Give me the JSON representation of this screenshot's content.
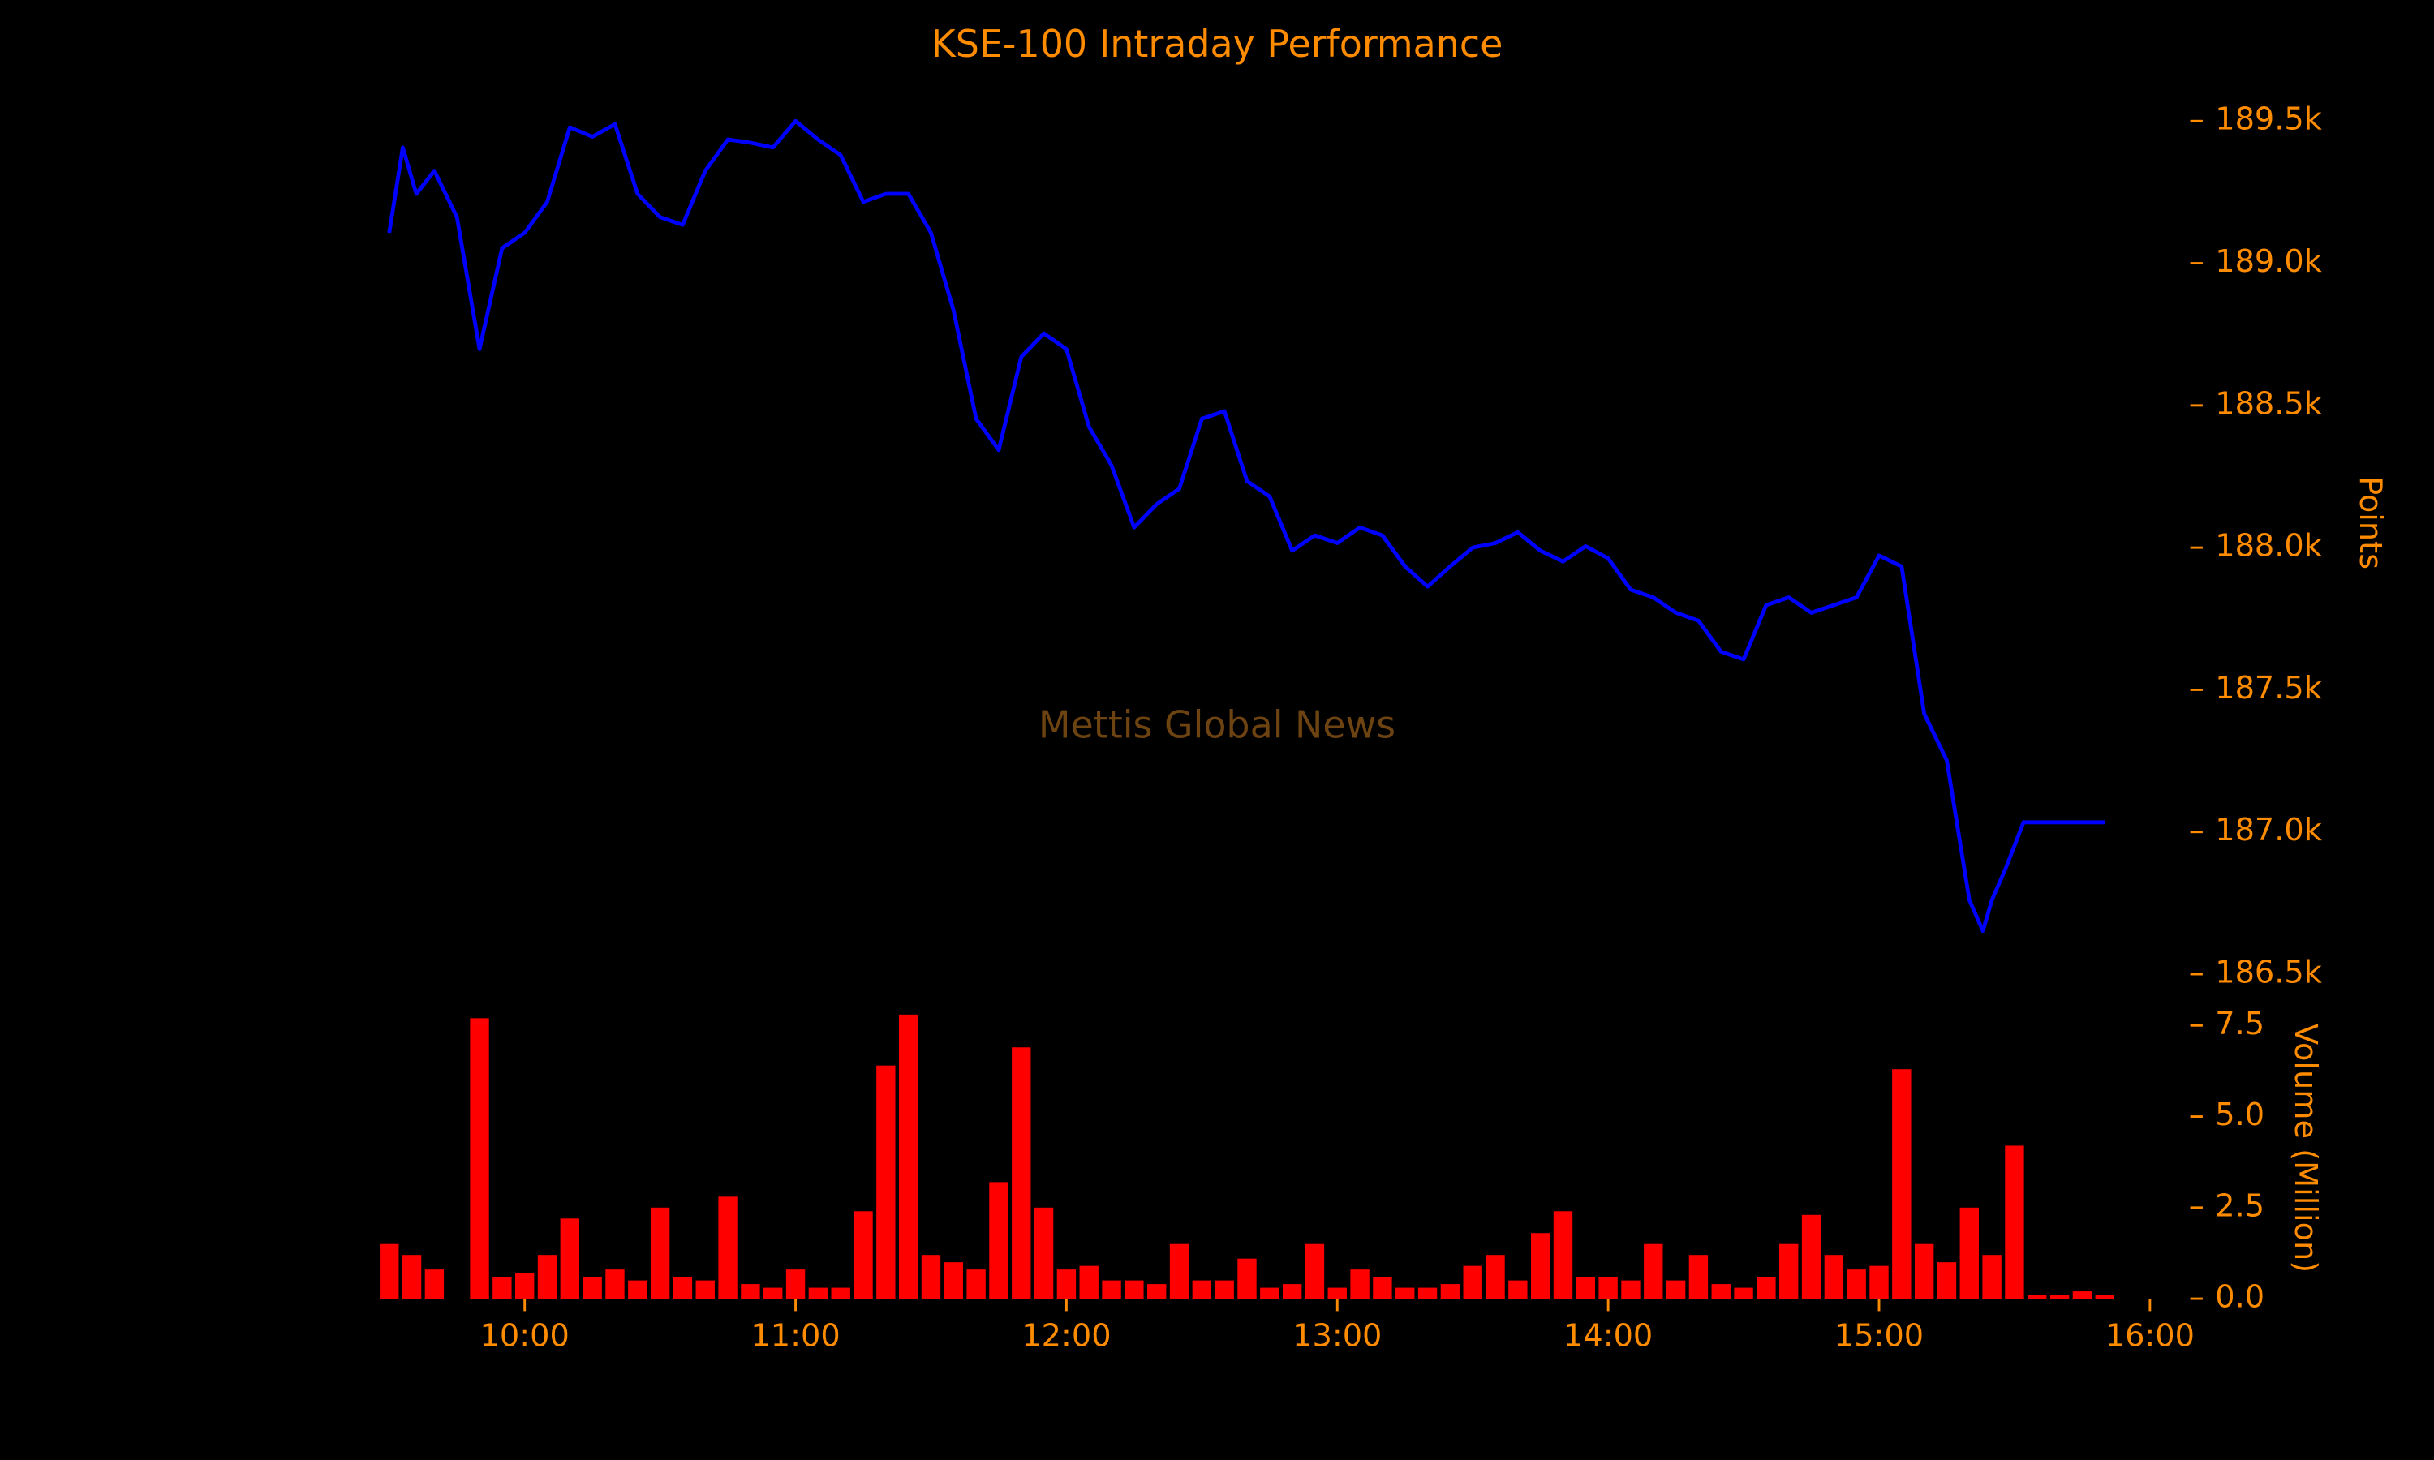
{
  "chart_data": [
    {
      "type": "line",
      "title": "KSE-100 Intraday Performance",
      "annotation": "Mettis Global News",
      "ylabel": "Points",
      "xlim": [
        "09:26",
        "16:00"
      ],
      "xticks": [
        "10:00",
        "11:00",
        "12:00",
        "13:00",
        "14:00",
        "15:00",
        "16:00"
      ],
      "ylim": [
        186400,
        189600
      ],
      "yticks": [
        {
          "value": 186500,
          "label": "186.5k"
        },
        {
          "value": 187000,
          "label": "187.0k"
        },
        {
          "value": 187500,
          "label": "187.5k"
        },
        {
          "value": 188000,
          "label": "188.0k"
        },
        {
          "value": 188500,
          "label": "188.5k"
        },
        {
          "value": 189000,
          "label": "189.0k"
        },
        {
          "value": 189500,
          "label": "189.5k"
        }
      ],
      "series": [
        {
          "color": "#0000ff",
          "x": [
            "09:30",
            "09:33",
            "09:36",
            "09:40",
            "09:45",
            "09:50",
            "09:55",
            "10:00",
            "10:05",
            "10:10",
            "10:15",
            "10:20",
            "10:25",
            "10:30",
            "10:35",
            "10:40",
            "10:45",
            "10:50",
            "10:55",
            "11:00",
            "11:05",
            "11:10",
            "11:15",
            "11:20",
            "11:25",
            "11:30",
            "11:35",
            "11:40",
            "11:45",
            "11:50",
            "11:55",
            "12:00",
            "12:05",
            "12:10",
            "12:15",
            "12:20",
            "12:25",
            "12:30",
            "12:35",
            "12:40",
            "12:45",
            "12:50",
            "12:55",
            "13:00",
            "13:05",
            "13:10",
            "13:15",
            "13:20",
            "13:25",
            "13:30",
            "13:35",
            "13:40",
            "13:45",
            "13:50",
            "13:55",
            "14:00",
            "14:05",
            "14:10",
            "14:15",
            "14:20",
            "14:25",
            "14:30",
            "14:35",
            "14:40",
            "14:45",
            "14:50",
            "14:55",
            "15:00",
            "15:05",
            "15:10",
            "15:15",
            "15:20",
            "15:23",
            "15:25",
            "15:28",
            "15:30",
            "15:32",
            "15:40",
            "15:50"
          ],
          "values": [
            189107,
            189407,
            189244,
            189325,
            189162,
            188698,
            189053,
            189107,
            189216,
            189478,
            189445,
            189489,
            189244,
            189162,
            189135,
            189325,
            189435,
            189424,
            189407,
            189500,
            189435,
            189380,
            189216,
            189244,
            189244,
            189107,
            188834,
            188453,
            188343,
            188671,
            188753,
            188698,
            188425,
            188289,
            188071,
            188153,
            188207,
            188453,
            188480,
            188234,
            188180,
            187989,
            188043,
            188016,
            188071,
            188043,
            187934,
            187863,
            187934,
            188000,
            188016,
            188054,
            187989,
            187951,
            188005,
            187962,
            187852,
            187825,
            187771,
            187743,
            187634,
            187607,
            187798,
            187825,
            187771,
            187798,
            187825,
            187972,
            187934,
            187416,
            187252,
            186761,
            186652,
            186761,
            186870,
            186952,
            187034,
            187034,
            187034
          ]
        }
      ]
    },
    {
      "type": "bar",
      "ylabel": "Volume (Million)",
      "xlim": [
        "09:26",
        "16:00"
      ],
      "ylim": [
        0,
        7.8
      ],
      "yticks": [
        {
          "value": 0,
          "label": "0.0"
        },
        2.5,
        {
          "value": 5,
          "label": "5.0"
        },
        7.5
      ],
      "series": [
        {
          "color": "#ff0000",
          "x": [
            "09:30",
            "09:35",
            "09:40",
            "09:45",
            "09:50",
            "09:55",
            "10:00",
            "10:05",
            "10:10",
            "10:15",
            "10:20",
            "10:25",
            "10:30",
            "10:35",
            "10:40",
            "10:45",
            "10:50",
            "10:55",
            "11:00",
            "11:05",
            "11:10",
            "11:15",
            "11:20",
            "11:25",
            "11:30",
            "11:35",
            "11:40",
            "11:45",
            "11:50",
            "11:55",
            "12:00",
            "12:05",
            "12:10",
            "12:15",
            "12:20",
            "12:25",
            "12:30",
            "12:35",
            "12:40",
            "12:45",
            "12:50",
            "12:55",
            "13:00",
            "13:05",
            "13:10",
            "13:15",
            "13:20",
            "13:25",
            "13:30",
            "13:35",
            "13:40",
            "13:45",
            "13:50",
            "13:55",
            "14:00",
            "14:05",
            "14:10",
            "14:15",
            "14:20",
            "14:25",
            "14:30",
            "14:35",
            "14:40",
            "14:45",
            "14:50",
            "14:55",
            "15:00",
            "15:05",
            "15:10",
            "15:15",
            "15:20",
            "15:25",
            "15:30",
            "15:35",
            "15:40",
            "15:45",
            "15:50"
          ],
          "values": [
            1.5,
            1.2,
            0.8,
            0,
            7.7,
            0.6,
            0.7,
            1.2,
            2.2,
            0.6,
            0.8,
            0.5,
            2.5,
            0.6,
            0.5,
            2.8,
            0.4,
            0.3,
            0.8,
            0.3,
            0.3,
            2.4,
            6.4,
            7.8,
            1.2,
            1.0,
            0.8,
            3.2,
            6.9,
            2.5,
            0.8,
            0.9,
            0.5,
            0.5,
            0.4,
            1.5,
            0.5,
            0.5,
            1.1,
            0.3,
            0.4,
            1.5,
            0.3,
            0.8,
            0.6,
            0.3,
            0.3,
            0.4,
            0.9,
            1.2,
            0.5,
            1.8,
            2.4,
            0.6,
            0.6,
            0.5,
            1.5,
            0.5,
            1.2,
            0.4,
            0.3,
            0.6,
            1.5,
            2.3,
            1.2,
            0.8,
            0.9,
            6.3,
            1.5,
            1.0,
            2.5,
            1.2,
            4.2,
            0.1,
            0.1,
            0.2,
            0.1
          ]
        }
      ]
    }
  ]
}
